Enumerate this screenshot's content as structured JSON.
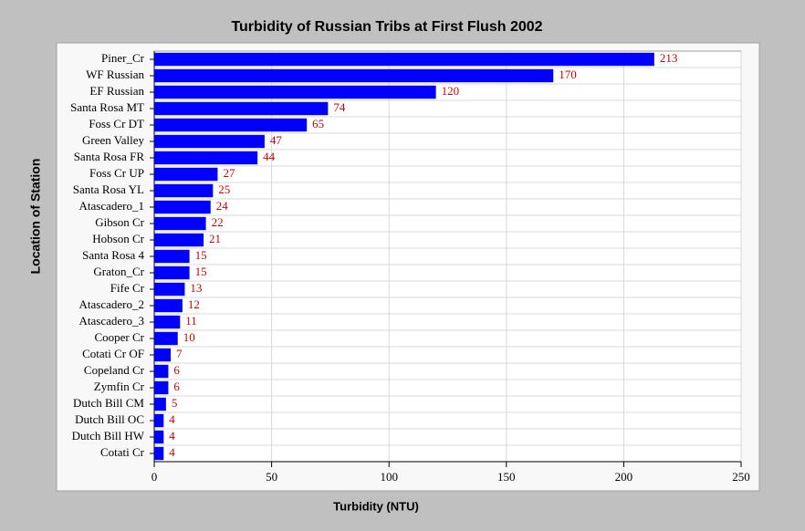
{
  "chart_data": {
    "type": "hbar",
    "title": "Turbidity of Russian Tribs at First Flush 2002",
    "x_label": "Turbidity (NTU)",
    "y_label": "Location of Station",
    "categories": [
      "Piner_Cr",
      "WF Russian",
      "EF Russian",
      "Santa Rosa MT",
      "Foss Cr DT",
      "Green Valley",
      "Santa Rosa FR",
      "Foss Cr UP",
      "Santa Rosa YL",
      "Atascadero_1",
      "Gibson Cr",
      "Hobson Cr",
      "Santa Rosa 4",
      "Graton_Cr",
      "Fife Cr",
      "Atascadero_2",
      "Atascadero_3",
      "Cooper Cr",
      "Cotati Cr OF",
      "Copeland Cr",
      "Zymfin Cr",
      "Dutch Bill CM",
      "Dutch Bill OC",
      "Dutch Bill HW",
      "Cotati Cr"
    ],
    "values": [
      213,
      170,
      120,
      74,
      65,
      47,
      44,
      27,
      25,
      24,
      22,
      21,
      15,
      15,
      13,
      12,
      11,
      10,
      7,
      6,
      6,
      5,
      4,
      4,
      4
    ],
    "color": "#0000ff",
    "label_color": "#cc0000",
    "xlim": [
      0,
      250
    ],
    "xticks": [
      0,
      50,
      100,
      150,
      200,
      250
    ],
    "grid": true
  }
}
